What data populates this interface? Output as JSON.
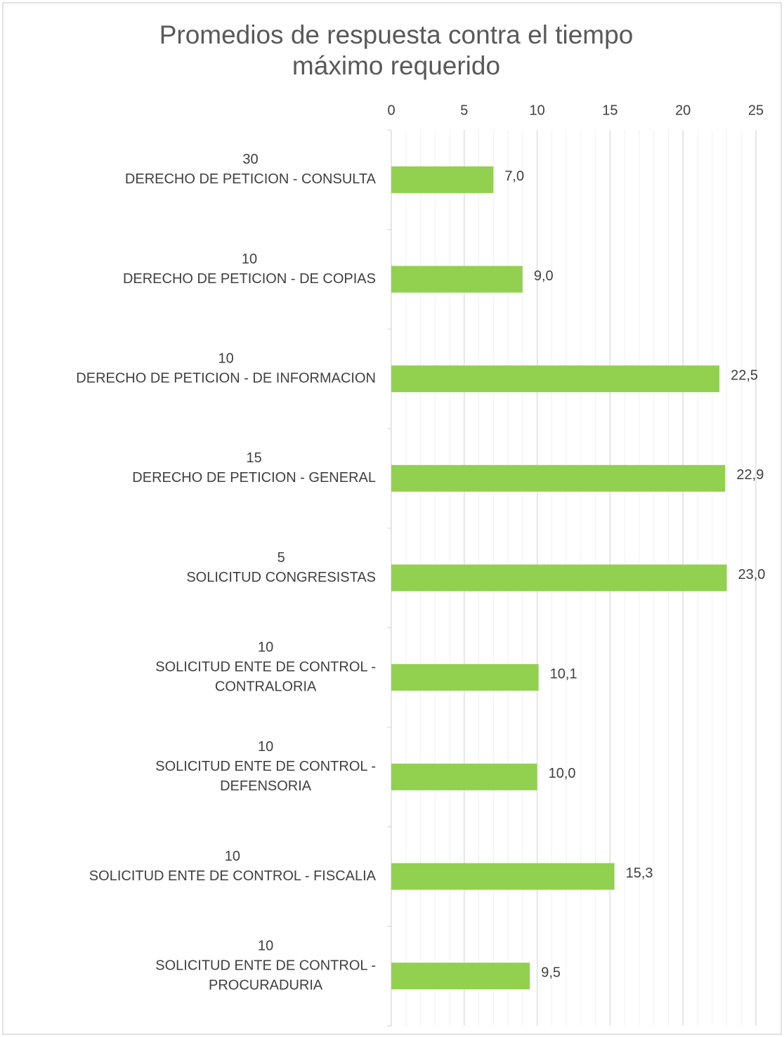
{
  "chart_data": {
    "type": "barh",
    "title": "Promedios de respuesta contra el tiempo máximo requerido",
    "categories": [
      [
        "30",
        "DERECHO DE PETICION - CONSULTA"
      ],
      [
        "10",
        "DERECHO DE PETICION - DE COPIAS"
      ],
      [
        "10",
        "DERECHO DE PETICION - DE INFORMACION"
      ],
      [
        "15",
        "DERECHO DE PETICION - GENERAL"
      ],
      [
        "5",
        "SOLICITUD CONGRESISTAS"
      ],
      [
        "10",
        "SOLICITUD ENTE DE CONTROL -",
        "CONTRALORIA"
      ],
      [
        "10",
        "SOLICITUD ENTE DE CONTROL -",
        "DEFENSORIA"
      ],
      [
        "10",
        "SOLICITUD ENTE DE CONTROL - FISCALIA"
      ],
      [
        "10",
        "SOLICITUD ENTE DE CONTROL -",
        "PROCURADURIA"
      ]
    ],
    "values": [
      7.0,
      9.0,
      22.5,
      22.9,
      23.0,
      10.1,
      10.0,
      15.3,
      9.5
    ],
    "value_labels": [
      "7,0",
      "9,0",
      "22,5",
      "22,9",
      "23,0",
      "10,1",
      "10,0",
      "15,3",
      "9,5"
    ],
    "color": "#92d050",
    "xlim": [
      0,
      25
    ],
    "xticks": [
      0,
      5,
      10,
      15,
      20,
      25
    ],
    "grid": true,
    "minor_grid": true
  }
}
